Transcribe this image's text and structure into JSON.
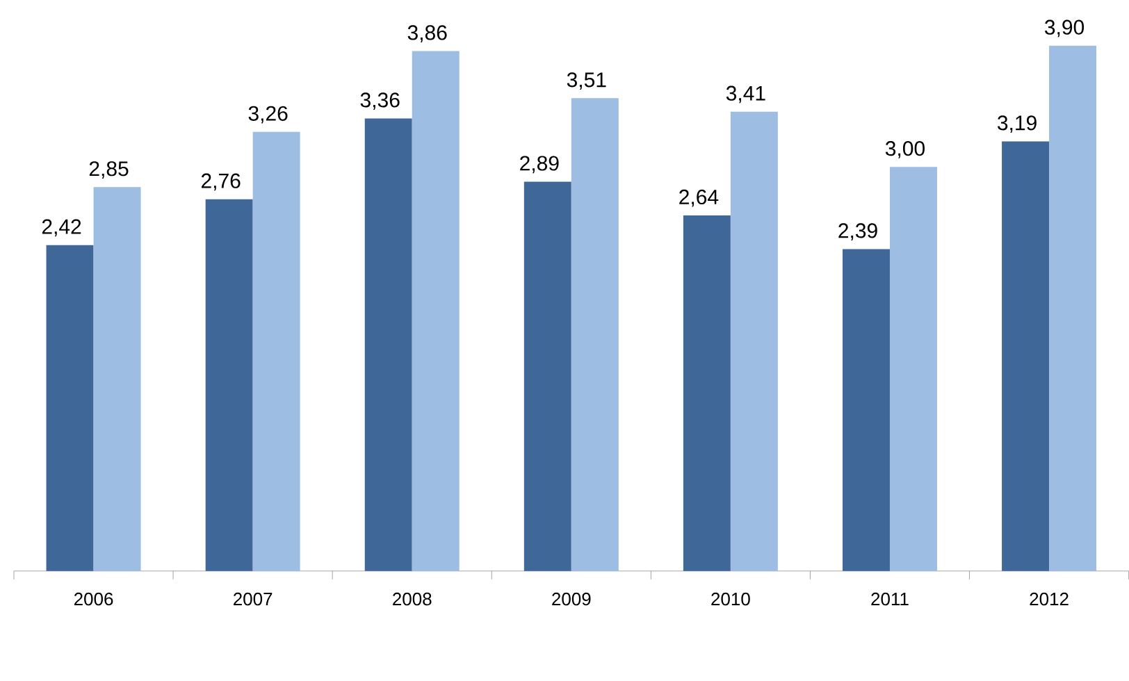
{
  "chart_data": {
    "type": "bar",
    "categories": [
      "2006",
      "2007",
      "2008",
      "2009",
      "2010",
      "2011",
      "2012"
    ],
    "series": [
      {
        "color": "#3f6797",
        "values": [
          2.42,
          2.76,
          3.36,
          2.89,
          2.64,
          2.39,
          3.19
        ],
        "value_labels": [
          "2,42",
          "2,76",
          "3,36",
          "2,89",
          "2,64",
          "2,39",
          "3,19"
        ]
      },
      {
        "color": "#9dbde3",
        "values": [
          2.85,
          3.26,
          3.86,
          3.51,
          3.41,
          3.0,
          3.9
        ],
        "value_labels": [
          "2,85",
          "3,26",
          "3,86",
          "3,51",
          "3,41",
          "3,00",
          "3,90"
        ]
      }
    ],
    "tick_labels": "x",
    "grid": false
  }
}
